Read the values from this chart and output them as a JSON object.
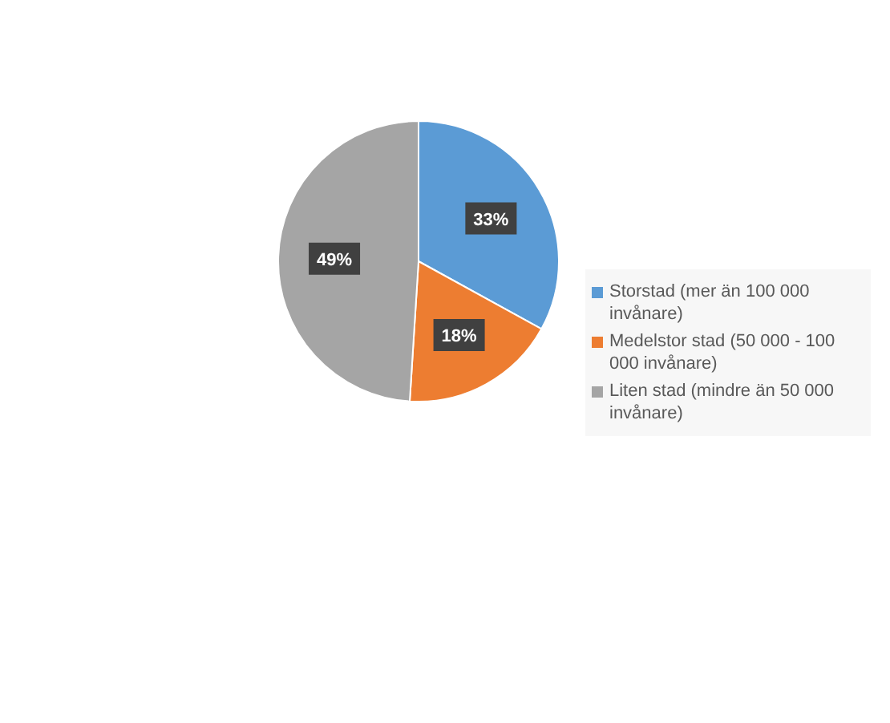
{
  "chart_data": {
    "type": "pie",
    "categories": [
      "Storstad (mer än 100 000 invånare)",
      "Medelstor stad (50 000 - 100 000 invånare)",
      "Liten stad (mindre än 50 000 invånare)"
    ],
    "values": [
      33,
      18,
      49
    ],
    "colors": [
      "#5b9bd5",
      "#ed7d31",
      "#a5a5a5"
    ],
    "value_labels": [
      "33%",
      "18%",
      "49%"
    ],
    "legend": "right"
  }
}
